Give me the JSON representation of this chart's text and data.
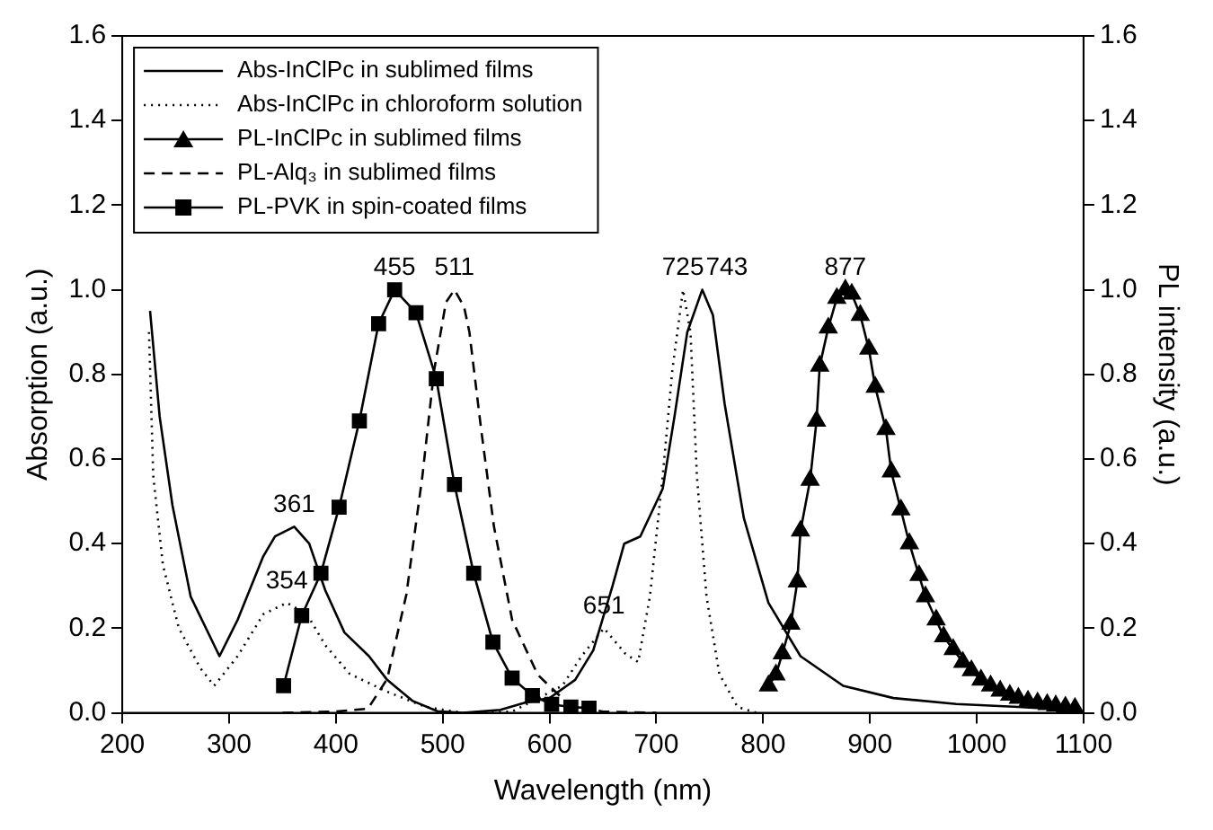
{
  "chart_data": {
    "type": "line",
    "xlabel": "Wavelength (nm)",
    "ylabel": "Absorption (a.u.)",
    "y2label": "PL intensity (a.u.)",
    "xlim": [
      200,
      1100
    ],
    "xticks": [
      200,
      300,
      400,
      500,
      600,
      700,
      800,
      900,
      1000,
      1100
    ],
    "ylim": [
      0,
      1.6
    ],
    "yticks": [
      {
        "value": 0,
        "label": "0.0"
      },
      {
        "value": 0.2,
        "label": "0.2"
      },
      {
        "value": 0.4,
        "label": "0.4"
      },
      {
        "value": 0.6,
        "label": "0.6"
      },
      {
        "value": 0.8,
        "label": "0.8"
      },
      {
        "value": 1,
        "label": "1.0"
      },
      {
        "value": 1.2,
        "label": "1.2"
      },
      {
        "value": 1.4,
        "label": "1.4"
      },
      {
        "value": 1.6,
        "label": "1.6"
      }
    ],
    "y2lim": [
      0,
      1.6
    ],
    "y2ticks": [
      {
        "value": 0,
        "label": "0.0"
      },
      {
        "value": 0.2,
        "label": "0.2"
      },
      {
        "value": 0.4,
        "label": "0.4"
      },
      {
        "value": 0.6,
        "label": "0.6"
      },
      {
        "value": 0.8,
        "label": "0.8"
      },
      {
        "value": 1,
        "label": "1.0"
      },
      {
        "value": 1.2,
        "label": "1.2"
      },
      {
        "value": 1.4,
        "label": "1.4"
      },
      {
        "value": 1.6,
        "label": "1.6"
      }
    ],
    "legend": "top left",
    "grid": false,
    "series": [
      {
        "name": "Abs-InClPc in sublimed films",
        "color": "#000000",
        "marker": "none",
        "line_style": "solid",
        "x": [
          226,
          235,
          247,
          264,
          291,
          308,
          332,
          343,
          361,
          375,
          390,
          408,
          431,
          448,
          472,
          495,
          519,
          554,
          577,
          600,
          624,
          641,
          659,
          670,
          685,
          706,
          717,
          729,
          743,
          753,
          764,
          782,
          805,
          835,
          875,
          922,
          981,
          1039,
          1086
        ],
        "values": [
          0.95,
          0.7,
          0.49,
          0.275,
          0.134,
          0.22,
          0.37,
          0.417,
          0.44,
          0.4,
          0.29,
          0.19,
          0.134,
          0.078,
          0.028,
          0.004,
          0,
          0.007,
          0.024,
          0.035,
          0.078,
          0.148,
          0.3,
          0.4,
          0.417,
          0.53,
          0.7,
          0.9,
          1.0,
          0.94,
          0.73,
          0.46,
          0.26,
          0.134,
          0.064,
          0.035,
          0.021,
          0.014,
          0.007
        ]
      },
      {
        "name": "Abs-InClPc in chloroform solution",
        "color": "#000000",
        "marker": "none",
        "line_style": "dotted",
        "x": [
          225,
          229,
          238,
          253,
          273,
          286,
          308,
          332,
          354,
          373,
          390,
          413,
          448,
          484,
          519,
          565,
          612,
          630,
          651,
          671,
          683,
          694,
          706,
          715,
          725,
          732,
          738,
          747,
          759,
          776,
          794
        ],
        "values": [
          0.9,
          0.56,
          0.35,
          0.2,
          0.106,
          0.064,
          0.134,
          0.233,
          0.26,
          0.233,
          0.16,
          0.092,
          0.05,
          0.014,
          0,
          0.003,
          0.064,
          0.134,
          0.2,
          0.14,
          0.12,
          0.275,
          0.56,
          0.81,
          1.0,
          0.9,
          0.56,
          0.275,
          0.092,
          0.014,
          0
        ]
      },
      {
        "name": "PL-InClPc in sublimed films",
        "color": "#000000",
        "marker": "triangle",
        "line_style": "solid",
        "x": [
          805,
          812,
          818,
          826,
          832,
          835,
          844,
          850,
          853,
          861,
          869,
          877,
          883,
          891,
          899,
          905,
          915,
          920,
          929,
          937,
          946,
          952,
          962,
          969,
          978,
          987,
          995,
          1004,
          1013,
          1022,
          1031,
          1039,
          1048,
          1057,
          1066,
          1074,
          1083,
          1092
        ],
        "values": [
          0.064,
          0.09,
          0.14,
          0.21,
          0.31,
          0.43,
          0.55,
          0.69,
          0.82,
          0.91,
          0.98,
          1.0,
          0.99,
          0.94,
          0.86,
          0.77,
          0.67,
          0.57,
          0.48,
          0.4,
          0.325,
          0.275,
          0.22,
          0.18,
          0.15,
          0.12,
          0.1,
          0.078,
          0.064,
          0.052,
          0.042,
          0.035,
          0.028,
          0.024,
          0.02,
          0.017,
          0.014,
          0.011
        ]
      },
      {
        "name": "PL-Alq₃ in sublimed films",
        "color": "#000000",
        "marker": "none",
        "line_style": "dashed",
        "x": [
          350,
          400,
          430,
          448,
          466,
          481,
          492,
          503,
          511,
          520,
          525,
          536,
          548,
          565,
          589,
          618,
          650,
          700
        ],
        "values": [
          0,
          0.003,
          0.01,
          0.08,
          0.28,
          0.56,
          0.81,
          0.97,
          1.0,
          0.96,
          0.9,
          0.67,
          0.44,
          0.22,
          0.09,
          0.02,
          0.003,
          0
        ]
      },
      {
        "name": "PL-PVK in spin-coated films",
        "color": "#000000",
        "marker": "square",
        "line_style": "solid",
        "x": [
          351,
          368,
          386,
          403,
          422,
          440,
          455,
          475,
          494,
          511,
          529,
          547,
          565,
          584,
          602,
          620,
          637
        ],
        "values": [
          0.064,
          0.23,
          0.33,
          0.486,
          0.69,
          0.92,
          1.0,
          0.946,
          0.79,
          0.54,
          0.33,
          0.167,
          0.082,
          0.041,
          0.02,
          0.014,
          0.011
        ]
      }
    ],
    "annotations": [
      {
        "text": "361",
        "x": 361,
        "y": 0.44
      },
      {
        "text": "354",
        "x": 354,
        "y": 0.26
      },
      {
        "text": "455",
        "x": 455,
        "y": 1.0
      },
      {
        "text": "511",
        "x": 511,
        "y": 1.0
      },
      {
        "text": "651",
        "x": 651,
        "y": 0.2
      },
      {
        "text": "725",
        "x": 725,
        "y": 1.0
      },
      {
        "text": "743",
        "x": 743,
        "y": 1.0
      },
      {
        "text": "877",
        "x": 877,
        "y": 1.0
      }
    ]
  }
}
